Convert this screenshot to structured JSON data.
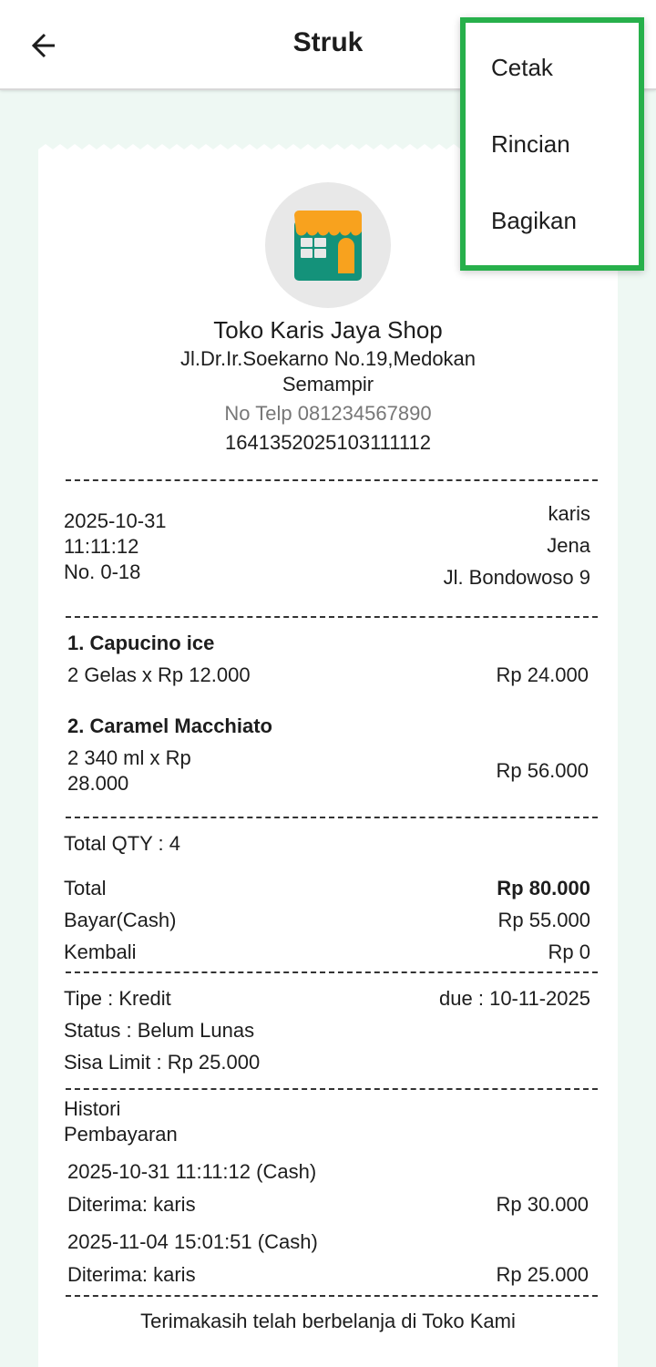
{
  "appbar": {
    "title": "Struk",
    "back_icon": "arrow-left-icon"
  },
  "menu": {
    "items": [
      {
        "label": "Cetak"
      },
      {
        "label": "Rincian"
      },
      {
        "label": "Bagikan"
      }
    ],
    "highlight_color": "#27b04b"
  },
  "store": {
    "logo_icon": "storefront-icon",
    "name": "Toko Karis Jaya Shop",
    "address_line1": "Jl.Dr.Ir.Soekarno No.19,Medokan",
    "address_line2": "Semampir",
    "phone": "No Telp 081234567890",
    "receipt_code": "1641352025103111112"
  },
  "info": {
    "date": "2025-10-31",
    "time": "11:11:12",
    "number": "No. 0-18",
    "customer": "karis",
    "customer_name": "Jena",
    "customer_address": "Jl. Bondowoso 9"
  },
  "items": [
    {
      "name": "1. Capucino ice",
      "qty_line": "2 Gelas x Rp 12.000",
      "qty_line2": "",
      "subtotal": "Rp 24.000"
    },
    {
      "name": "2. Caramel Macchiato",
      "qty_line": "2 340 ml x Rp",
      "qty_line2": "28.000",
      "subtotal": "Rp 56.000"
    }
  ],
  "summary": {
    "total_qty": "Total QTY : 4",
    "total_label": "Total",
    "total_value": "Rp 80.000",
    "paid_label": "Bayar(Cash)",
    "paid_value": "Rp 55.000",
    "change_label": "Kembali",
    "change_value": "Rp 0"
  },
  "credit": {
    "type": "Tipe : Kredit",
    "due": "due : 10-11-2025",
    "status": "Status : Belum Lunas",
    "remaining": "Sisa Limit : Rp 25.000"
  },
  "history": {
    "title_line1": "Histori",
    "title_line2": "Pembayaran",
    "entries": [
      {
        "datetime": "2025-10-31 11:11:12 (Cash)",
        "received": "Diterima: karis",
        "amount": "Rp 30.000"
      },
      {
        "datetime": "2025-11-04 15:01:51 (Cash)",
        "received": "Diterima: karis",
        "amount": "Rp 25.000"
      }
    ]
  },
  "footer": "Terimakasih telah berbelanja di Toko Kami"
}
